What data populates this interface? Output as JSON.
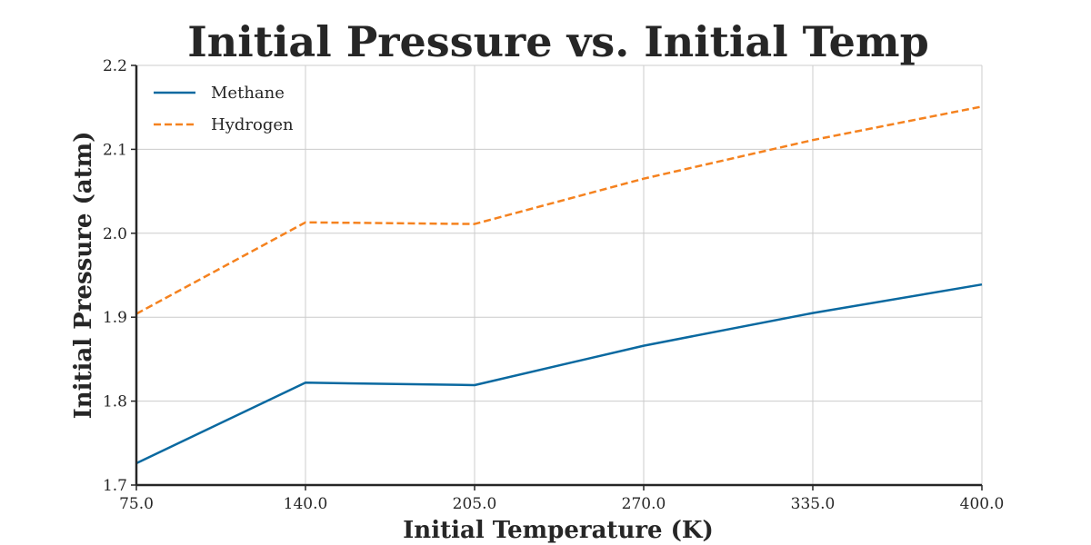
{
  "chart_data": {
    "type": "line",
    "title": "Initial Pressure vs. Initial Temp",
    "xlabel": "Initial Temperature (K)",
    "ylabel": "Initial Pressure (atm)",
    "x": [
      75,
      140,
      205,
      270,
      335,
      400
    ],
    "x_tick_labels": [
      "75.0",
      "140.0",
      "205.0",
      "270.0",
      "335.0",
      "400.0"
    ],
    "y_tick_labels": [
      "1.7",
      "1.8",
      "1.9",
      "2.0",
      "2.1",
      "2.2"
    ],
    "y_ticks": [
      1.7,
      1.8,
      1.9,
      2.0,
      2.1,
      2.2
    ],
    "xlim": [
      75,
      400
    ],
    "ylim": [
      1.7,
      2.2
    ],
    "grid": true,
    "legend_position": "top-left",
    "series": [
      {
        "name": "Methane",
        "values": [
          1.726,
          1.822,
          1.819,
          1.866,
          1.905,
          1.939
        ],
        "color": "#0a69a0",
        "style": "solid"
      },
      {
        "name": "Hydrogen",
        "values": [
          1.904,
          2.013,
          2.011,
          2.065,
          2.111,
          2.151
        ],
        "color": "#f5821f",
        "style": "dashed"
      }
    ]
  }
}
